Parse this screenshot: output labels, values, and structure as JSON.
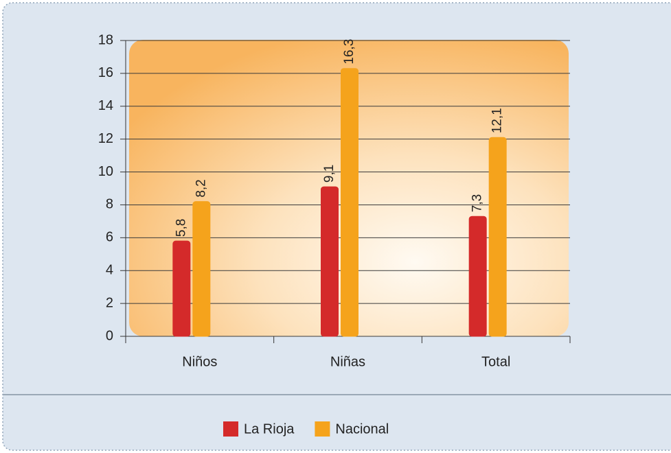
{
  "chart_data": {
    "type": "bar",
    "categories": [
      "Niños",
      "Niñas",
      "Total"
    ],
    "series": [
      {
        "name": "La Rioja",
        "color": "#d42a2a",
        "values": [
          5.8,
          9.1,
          7.3
        ],
        "value_labels": [
          "5,8",
          "9,1",
          "7,3"
        ]
      },
      {
        "name": "Nacional",
        "color": "#f5a31c",
        "values": [
          8.2,
          16.3,
          12.1
        ],
        "value_labels": [
          "8,2",
          "16,3",
          "12,1"
        ]
      }
    ],
    "ylim": [
      0,
      18
    ],
    "yticks": [
      0,
      2,
      4,
      6,
      8,
      10,
      12,
      14,
      16,
      18
    ],
    "grid": true,
    "legend": "bottom"
  }
}
